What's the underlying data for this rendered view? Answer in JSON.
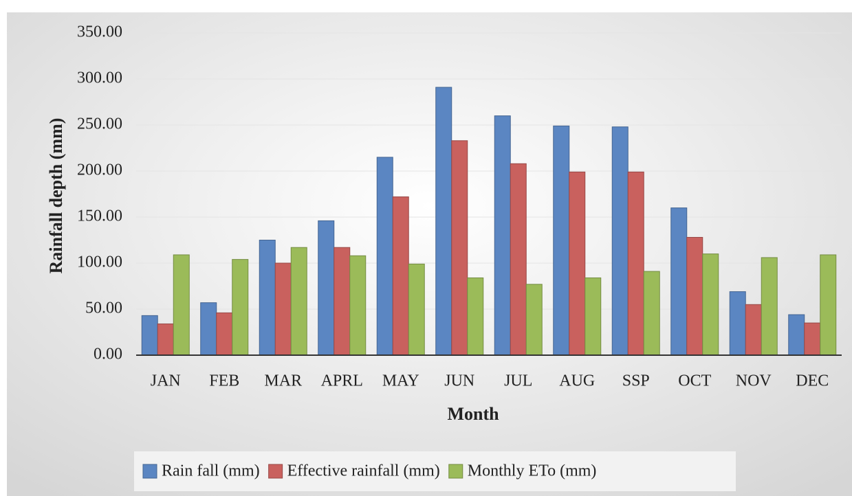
{
  "chart_data": {
    "type": "bar",
    "x_label": "Month",
    "y_label": "Rainfall depth (mm)",
    "categories": [
      "JAN",
      "FEB",
      "MAR",
      "APRL",
      "MAY",
      "JUN",
      "JUL",
      "AUG",
      "SSP",
      "OCT",
      "NOV",
      "DEC"
    ],
    "series": [
      {
        "name": "Rain fall (mm)",
        "color": "#5b86c2",
        "values": [
          43,
          57,
          125,
          146,
          215,
          291,
          260,
          249,
          248,
          160,
          69,
          44
        ]
      },
      {
        "name": "Effective rainfall (mm)",
        "color": "#c9615e",
        "values": [
          34,
          46,
          100,
          117,
          172,
          233,
          208,
          199,
          199,
          128,
          55,
          35
        ]
      },
      {
        "name": "Monthly ETo (mm)",
        "color": "#9bbb59",
        "values": [
          109,
          104,
          117,
          108,
          99,
          84,
          77,
          84,
          91,
          110,
          106,
          109
        ]
      }
    ],
    "ylim": [
      0,
      350
    ],
    "yticks": [
      {
        "value": 0,
        "label": "0.00"
      },
      {
        "value": 50,
        "label": "50.00"
      },
      {
        "value": 100,
        "label": "100.00"
      },
      {
        "value": 150,
        "label": "150.00"
      },
      {
        "value": 200,
        "label": "200.00"
      },
      {
        "value": 250,
        "label": "250.00"
      },
      {
        "value": 300,
        "label": "300.00"
      },
      {
        "value": 350,
        "label": "350.00"
      }
    ],
    "grid": true,
    "legend": "bottom"
  }
}
